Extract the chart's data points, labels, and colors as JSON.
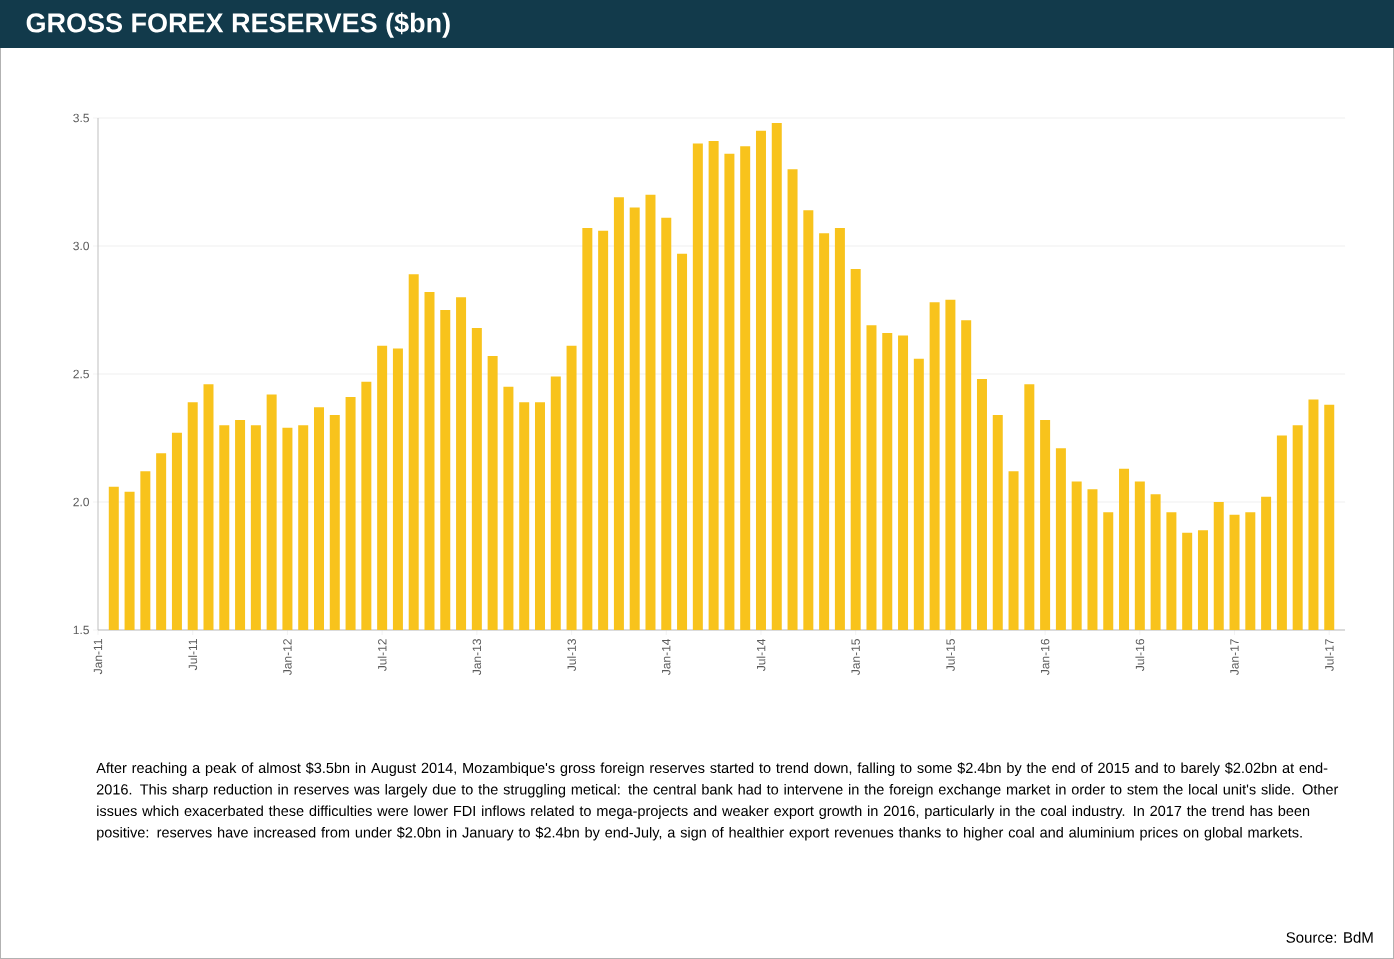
{
  "chart_data": {
    "type": "bar",
    "title": "GROSS FOREX RESERVES ($bn)",
    "annotations": [
      "After reaching a peak of almost $3.5bn in August 2014, Mozambique's gross foreign reserves started to trend down, falling to some $2.4bn by the end of 2015 and to barely $2.02bn at end-2016. This sharp reduction in reserves was largely due to the struggling metical: the central bank had to intervene in the foreign exchange market in order to stem the local unit's slide. Other issues which exacerbated these difficulties were lower FDI inflows related to mega-projects and weaker export growth in 2016, particularly in the coal industry. In 2017 the trend has been positive: reserves have increased from under $2.0bn in January to $2.4bn by end-July, a sign of healthier export revenues thanks to higher coal and aluminium prices on global markets.",
      "Source: BdM"
    ],
    "x": [
      "2011-02",
      "2011-03",
      "2011-04",
      "2011-05",
      "2011-06",
      "2011-07",
      "2011-08",
      "2011-09",
      "2011-10",
      "2011-11",
      "2011-12",
      "2012-01",
      "2012-02",
      "2012-03",
      "2012-04",
      "2012-05",
      "2012-06",
      "2012-07",
      "2012-08",
      "2012-09",
      "2012-10",
      "2012-11",
      "2012-12",
      "2013-01",
      "2013-02",
      "2013-03",
      "2013-04",
      "2013-05",
      "2013-06",
      "2013-07",
      "2013-08",
      "2013-09",
      "2013-10",
      "2013-11",
      "2013-12",
      "2014-01",
      "2014-02",
      "2014-03",
      "2014-04",
      "2014-05",
      "2014-06",
      "2014-07",
      "2014-08",
      "2014-09",
      "2014-10",
      "2014-11",
      "2014-12",
      "2015-01",
      "2015-02",
      "2015-03",
      "2015-04",
      "2015-05",
      "2015-06",
      "2015-07",
      "2015-08",
      "2015-09",
      "2015-10",
      "2015-11",
      "2015-12",
      "2016-01",
      "2016-02",
      "2016-03",
      "2016-04",
      "2016-05",
      "2016-06",
      "2016-07",
      "2016-08",
      "2016-09",
      "2016-10",
      "2016-11",
      "2016-12",
      "2017-01",
      "2017-02",
      "2017-03",
      "2017-04",
      "2017-05",
      "2017-06",
      "2017-07"
    ],
    "values": [
      2.06,
      2.04,
      2.12,
      2.19,
      2.27,
      2.39,
      2.46,
      2.3,
      2.32,
      2.3,
      2.42,
      2.29,
      2.3,
      2.37,
      2.34,
      2.41,
      2.47,
      2.61,
      2.6,
      2.89,
      2.82,
      2.75,
      2.8,
      2.68,
      2.57,
      2.45,
      2.39,
      2.39,
      2.49,
      2.61,
      3.07,
      3.06,
      3.19,
      3.15,
      3.2,
      3.11,
      2.97,
      3.4,
      3.41,
      3.36,
      3.39,
      3.45,
      3.48,
      3.3,
      3.14,
      3.05,
      3.07,
      2.91,
      2.69,
      2.66,
      2.65,
      2.56,
      2.78,
      2.79,
      2.71,
      2.48,
      2.34,
      2.12,
      2.46,
      2.32,
      2.21,
      2.08,
      2.05,
      1.96,
      2.13,
      2.08,
      2.03,
      1.96,
      1.88,
      1.89,
      2.0,
      1.95,
      1.96,
      2.02,
      2.26,
      2.3,
      2.4,
      2.38
    ],
    "color": "#f8c31c",
    "xlim": [
      "2011-01",
      "2017-08"
    ],
    "xticks": [
      {
        "value": "2011-01",
        "label": "Jan-11"
      },
      {
        "value": "2011-07",
        "label": "Jul-11"
      },
      {
        "value": "2012-01",
        "label": "Jan-12"
      },
      {
        "value": "2012-07",
        "label": "Jul-12"
      },
      {
        "value": "2013-01",
        "label": "Jan-13"
      },
      {
        "value": "2013-07",
        "label": "Jul-13"
      },
      {
        "value": "2014-01",
        "label": "Jan-14"
      },
      {
        "value": "2014-07",
        "label": "Jul-14"
      },
      {
        "value": "2015-01",
        "label": "Jan-15"
      },
      {
        "value": "2015-07",
        "label": "Jul-15"
      },
      {
        "value": "2016-01",
        "label": "Jan-16"
      },
      {
        "value": "2016-07",
        "label": "Jul-16"
      },
      {
        "value": "2017-01",
        "label": "Jan-17"
      },
      {
        "value": "2017-07",
        "label": "Jul-17"
      }
    ],
    "ylim": [
      1.5,
      3.5
    ],
    "yticks": [
      1.5,
      {
        "value": 2,
        "label": "2.0"
      },
      2.5,
      {
        "value": 3,
        "label": "3.0"
      },
      3.5
    ],
    "grid": "y"
  }
}
